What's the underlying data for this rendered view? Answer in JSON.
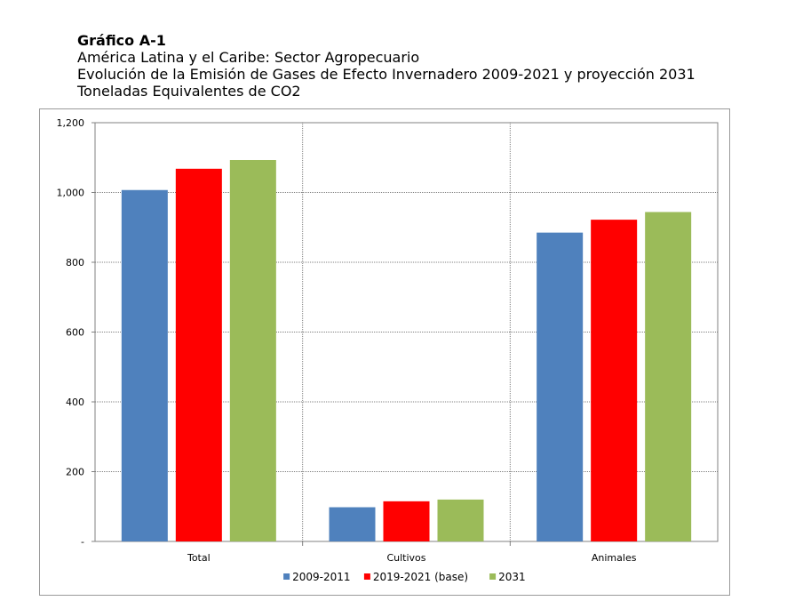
{
  "heading": {
    "title": "Gráfico A-1",
    "line1": "América Latina y el Caribe: Sector Agropecuario",
    "line2": "Evolución de la Emisión de Gases de Efecto Invernadero 2009-2021 y proyección 2031",
    "line3": "Toneladas Equivalentes de CO2"
  },
  "chart_data": {
    "type": "bar",
    "categories": [
      "Total",
      "Cultivos",
      "Animales"
    ],
    "series": [
      {
        "name": "2009-2011",
        "color": "#4f81bd",
        "values": [
          1007,
          98,
          885
        ]
      },
      {
        "name": "2019-2021 (base)",
        "color": "#ff0000",
        "values": [
          1068,
          115,
          922
        ]
      },
      {
        "name": "2031",
        "color": "#9bbb59",
        "values": [
          1093,
          120,
          944
        ]
      }
    ],
    "ylim": [
      0,
      1200
    ],
    "yticks": [
      0,
      200,
      400,
      600,
      800,
      1000,
      1200
    ],
    "ytick_labels": [
      "-",
      "200",
      "400",
      "600",
      "800",
      "1,000",
      "1,200"
    ],
    "grid": true,
    "legend_position": "bottom"
  }
}
